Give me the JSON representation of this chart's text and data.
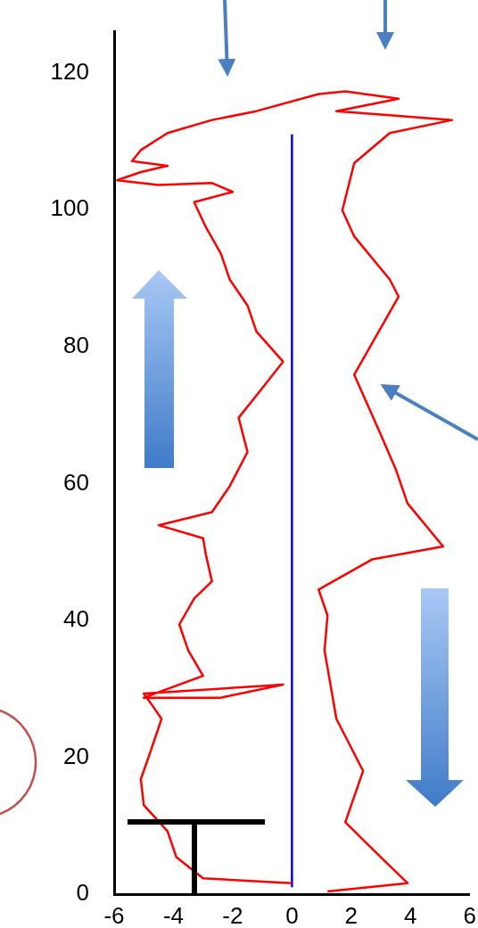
{
  "chart_data": {
    "type": "line",
    "xlim": [
      -6,
      6
    ],
    "xticks": [
      -6,
      -4,
      -2,
      0,
      2,
      4,
      6
    ],
    "ylim": [
      0,
      126
    ],
    "yticks": [
      0,
      20,
      40,
      60,
      80,
      100,
      120
    ],
    "grid": false,
    "legend": false,
    "marker": "none",
    "series": [
      {
        "color": "#ff0000",
        "x": [
          0,
          -3.0,
          -3.9,
          -4.2,
          -5.0,
          -5.1,
          -4.8,
          -4.4,
          -4.7,
          -5.0,
          -0.3,
          -2.4,
          -5.0,
          -3.0,
          -3.5,
          -3.8,
          -3.3,
          -2.7,
          -2.9,
          -3.0,
          -4.5,
          -2.7,
          -2.1,
          -1.5,
          -1.8,
          -1.1,
          -0.3,
          -1.2,
          -1.5,
          -2.1,
          -2.4,
          -2.9,
          -3.3,
          -2.0,
          -2.7,
          -4.5,
          -5.9,
          -5.1,
          -4.2,
          -5.4,
          -5.1,
          -4.2,
          -2.7,
          -1.2,
          0.9,
          1.8,
          3.6,
          1.5,
          3.6,
          5.4,
          3.3,
          2.1,
          1.7,
          2.1,
          3.3,
          3.6,
          2.6,
          2.1,
          3.0,
          3.5,
          3.9,
          5.1,
          2.7,
          0.9,
          1.2,
          1.1,
          1.5,
          2.4,
          1.8,
          3.0,
          3.9,
          1.2
        ],
        "values": [
          1.6,
          2.3,
          5.4,
          9.2,
          13.0,
          16.8,
          20.5,
          25.6,
          27.5,
          29.3,
          30.6,
          28.7,
          28.7,
          31.9,
          35.6,
          39.4,
          43.2,
          45.7,
          49.5,
          52.0,
          53.9,
          55.8,
          59.6,
          64.6,
          69.6,
          73.4,
          77.8,
          82.2,
          86.0,
          89.8,
          93.6,
          97.4,
          101.1,
          102.6,
          103.9,
          103.6,
          104.3,
          105.5,
          106.4,
          107.1,
          108.7,
          111.2,
          113.1,
          114.4,
          116.9,
          117.3,
          116.2,
          114.4,
          113.7,
          113.1,
          111.2,
          106.8,
          99.9,
          96.1,
          89.8,
          87.3,
          79.7,
          75.9,
          67.1,
          62.1,
          57.1,
          50.8,
          48.9,
          44.5,
          40.7,
          35.6,
          25.6,
          18.0,
          10.5,
          5.4,
          1.6,
          0.4
        ]
      },
      {
        "color": "#0000ff",
        "x": [
          0,
          0
        ],
        "values": [
          1,
          111
        ]
      }
    ]
  }
}
